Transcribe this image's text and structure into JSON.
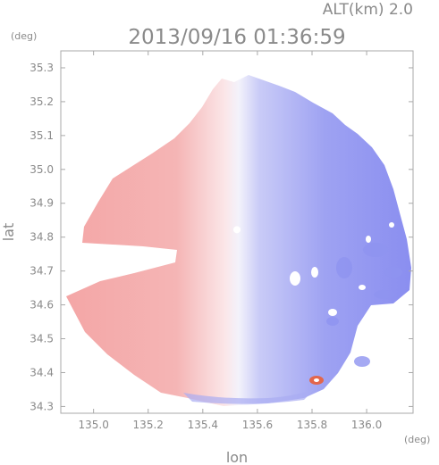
{
  "chart_data": {
    "type": "heatmap",
    "title": "2013/09/16 01:36:59",
    "subtitle": "ALT(km) 2.0",
    "xlabel": "lon",
    "ylabel": "lat",
    "x_unit": "(deg)",
    "y_unit": "(deg)",
    "xlim": [
      134.88,
      136.17
    ],
    "ylim": [
      34.28,
      35.35
    ],
    "x_ticks": [
      135.0,
      135.2,
      135.4,
      135.6,
      135.8,
      136.0
    ],
    "x_tick_labels": [
      "135.0",
      "135.2",
      "135.4",
      "135.6",
      "135.8",
      "136.0"
    ],
    "y_ticks": [
      34.3,
      34.4,
      34.5,
      34.6,
      34.7,
      34.8,
      34.9,
      35.0,
      35.1,
      35.2,
      35.3
    ],
    "y_tick_labels": [
      "34.3",
      "34.4",
      "34.5",
      "34.6",
      "34.7",
      "34.8",
      "34.9",
      "35.0",
      "35.1",
      "35.2",
      "35.3"
    ],
    "radar_center": {
      "lon": 135.525,
      "lat": 34.822
    },
    "coverage_radius_deg": 0.55,
    "colors": {
      "toward": "#f2a9a9",
      "away": "#8a8ef0",
      "near_zero": "#f4f4fb",
      "frame": "#a8a8a8",
      "text": "#8a8a8a"
    }
  }
}
